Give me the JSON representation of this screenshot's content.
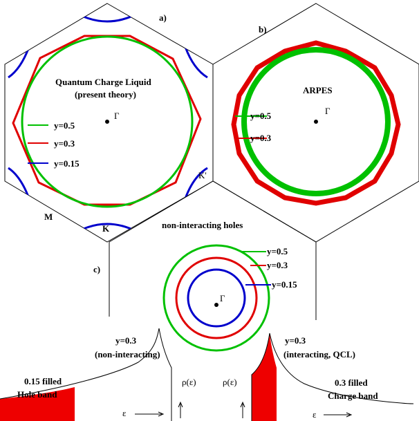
{
  "panels": {
    "a": {
      "tag": "a)",
      "title_line1": "Quantum Charge Liquid",
      "title_line2": "(present theory)",
      "gamma": "Γ",
      "legend": [
        {
          "label": "y=0.5",
          "color": "#00c000"
        },
        {
          "label": "y=0.3",
          "color": "#e00000"
        },
        {
          "label": "y=0.15",
          "color": "#0000cc"
        }
      ],
      "point_M": "M",
      "point_K": "K",
      "point_K_prime": "K'"
    },
    "b": {
      "tag": "b)",
      "title": "ARPES",
      "gamma": "Γ",
      "legend": [
        {
          "label": "y=0.5",
          "color": "#00c000"
        },
        {
          "label": "y=0.3",
          "color": "#e00000"
        }
      ]
    },
    "c": {
      "tag": "c)",
      "title": "non-interacting holes",
      "gamma": "Γ",
      "legend": [
        {
          "label": "y=0.5",
          "color": "#00c000"
        },
        {
          "label": "y=0.3",
          "color": "#e00000"
        },
        {
          "label": "y=0.15",
          "color": "#0000cc"
        }
      ]
    },
    "dos_left": {
      "label_line1": "y=0.3",
      "label_line2": "(non-interacting)",
      "fill_line1": "0.15 filled",
      "fill_line2": "Hole   band",
      "rho": "ρ(ε)",
      "epsilon": "ε"
    },
    "dos_right": {
      "label_line1": "y=0.3",
      "label_line2": "(interacting, QCL)",
      "fill_line1": "0.3 filled",
      "fill_line2": "Charge band",
      "rho": "ρ(ε)",
      "epsilon": "ε"
    }
  },
  "colors": {
    "green": "#00c000",
    "red": "#e00000",
    "blue": "#0000cc",
    "fill_red": "#ee0000"
  }
}
